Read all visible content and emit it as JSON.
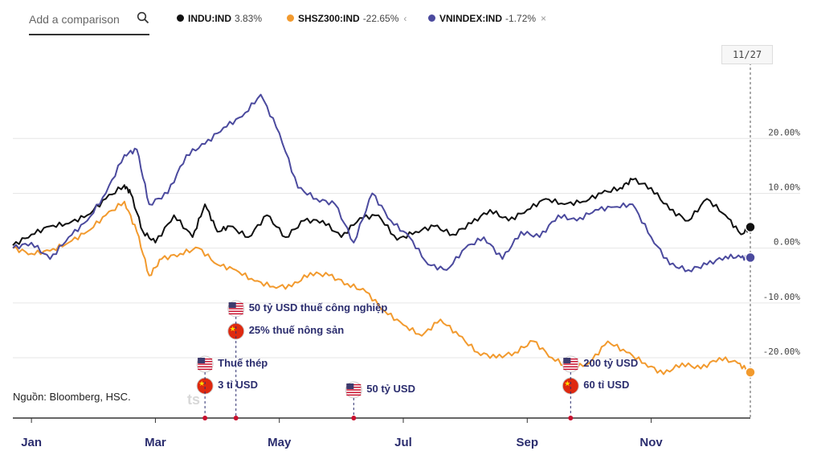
{
  "search": {
    "placeholder": "Add a comparison"
  },
  "legend": [
    {
      "ticker": "INDU:IND",
      "change": "3.83%",
      "color": "#111111",
      "close": ""
    },
    {
      "ticker": "SHSZ300:IND",
      "change": "-22.65%",
      "color": "#f29a2e",
      "close": "‹"
    },
    {
      "ticker": "VNINDEX:IND",
      "change": "-1.72%",
      "color": "#4b4a9e",
      "close": "×"
    }
  ],
  "date_label": "11/27",
  "source": "Nguồn: Bloomberg, HSC.",
  "watermark": "ts",
  "annotations": [
    {
      "flag": "us",
      "text": "50 tỷ USD thuế công nghiệp",
      "month": 3.6,
      "row": 0
    },
    {
      "flag": "cn",
      "text": "25% thuế nông sản",
      "month": 3.6,
      "row": 1
    },
    {
      "flag": "us",
      "text": "Thuế thép",
      "month": 3.1,
      "row": 2
    },
    {
      "flag": "cn",
      "text": "3 tỉ USD",
      "month": 3.1,
      "row": 3
    },
    {
      "flag": "us",
      "text": "50 tỷ USD",
      "month": 5.5,
      "row": 4
    },
    {
      "flag": "us",
      "text": "200 tỷ USD",
      "month": 9.0,
      "row": 2
    },
    {
      "flag": "cn",
      "text": "60 tỉ USD",
      "month": 9.0,
      "row": 3
    }
  ],
  "chart_data": {
    "type": "line",
    "x_ticks": [
      "Jan",
      "Mar",
      "May",
      "Jul",
      "Sep",
      "Nov"
    ],
    "y_ticks": [
      "20.00%",
      "10.00%",
      "0.00%",
      "-10.00%",
      "-20.00%"
    ],
    "y_tick_values": [
      20,
      10,
      0,
      -10,
      -20
    ],
    "ylim": [
      -31,
      35
    ],
    "xlim": [
      0,
      11.9
    ],
    "series": [
      {
        "name": "INDU:IND",
        "color": "#111111",
        "x": [
          0,
          0.3,
          0.6,
          0.9,
          1.2,
          1.5,
          1.8,
          1.9,
          2.1,
          2.3,
          2.6,
          2.9,
          3.1,
          3.3,
          3.5,
          3.8,
          4.1,
          4.4,
          4.7,
          5.0,
          5.3,
          5.6,
          5.9,
          6.2,
          6.5,
          6.8,
          7.1,
          7.4,
          7.7,
          8.0,
          8.3,
          8.6,
          8.9,
          9.2,
          9.5,
          9.8,
          10.0,
          10.3,
          10.6,
          10.9,
          11.2,
          11.5,
          11.75,
          11.9
        ],
        "y": [
          0.5,
          2.5,
          4,
          4.5,
          6,
          9,
          11.5,
          10,
          3,
          1,
          6,
          2,
          8,
          3,
          4,
          2,
          6,
          2,
          5,
          5,
          2,
          5.5,
          6,
          1.5,
          3,
          4,
          2.5,
          4.5,
          7,
          5,
          7,
          9,
          8,
          8.5,
          10,
          11,
          12.5,
          11,
          7,
          5,
          9,
          6,
          2.5,
          3.83
        ]
      },
      {
        "name": "SHSZ300:IND",
        "color": "#f29a2e",
        "x": [
          0,
          0.3,
          0.6,
          0.9,
          1.2,
          1.5,
          1.8,
          2.0,
          2.2,
          2.4,
          2.7,
          3.0,
          3.3,
          3.6,
          3.9,
          4.2,
          4.5,
          4.8,
          5.1,
          5.4,
          5.7,
          6.0,
          6.3,
          6.6,
          6.9,
          7.2,
          7.5,
          7.8,
          8.1,
          8.4,
          8.7,
          9.0,
          9.3,
          9.6,
          9.9,
          10.2,
          10.5,
          10.8,
          11.1,
          11.4,
          11.7,
          11.9
        ],
        "y": [
          0,
          -1,
          -0.5,
          1,
          3,
          6,
          8.5,
          3,
          -5,
          -2,
          -1,
          0,
          -3,
          -4,
          -6,
          -7,
          -7,
          -4.5,
          -5,
          -6.5,
          -8,
          -11.5,
          -14,
          -16,
          -13,
          -16,
          -19,
          -20,
          -19,
          -17,
          -20,
          -22,
          -21,
          -17,
          -19,
          -21,
          -23,
          -21,
          -22,
          -20,
          -21,
          -22.65
        ]
      },
      {
        "name": "VNINDEX:IND",
        "color": "#4b4a9e",
        "x": [
          0,
          0.3,
          0.6,
          0.9,
          1.2,
          1.5,
          1.8,
          2.0,
          2.2,
          2.5,
          2.8,
          3.1,
          3.4,
          3.7,
          4.0,
          4.3,
          4.6,
          4.9,
          5.2,
          5.5,
          5.8,
          6.1,
          6.4,
          6.7,
          7.0,
          7.3,
          7.6,
          7.9,
          8.2,
          8.5,
          8.8,
          9.1,
          9.4,
          9.7,
          10.0,
          10.3,
          10.6,
          10.9,
          11.2,
          11.5,
          11.75,
          11.9
        ],
        "y": [
          0,
          1,
          -2,
          2,
          5,
          10,
          17,
          18,
          8,
          10,
          17,
          19,
          22,
          24,
          28,
          21,
          11,
          9,
          8,
          1,
          10,
          5,
          2,
          -3,
          -4,
          0,
          2,
          -2,
          3,
          2,
          6,
          5,
          7,
          7.5,
          8,
          2,
          -3,
          -4,
          -3,
          -1.5,
          -1.72,
          -1.72
        ]
      }
    ]
  }
}
